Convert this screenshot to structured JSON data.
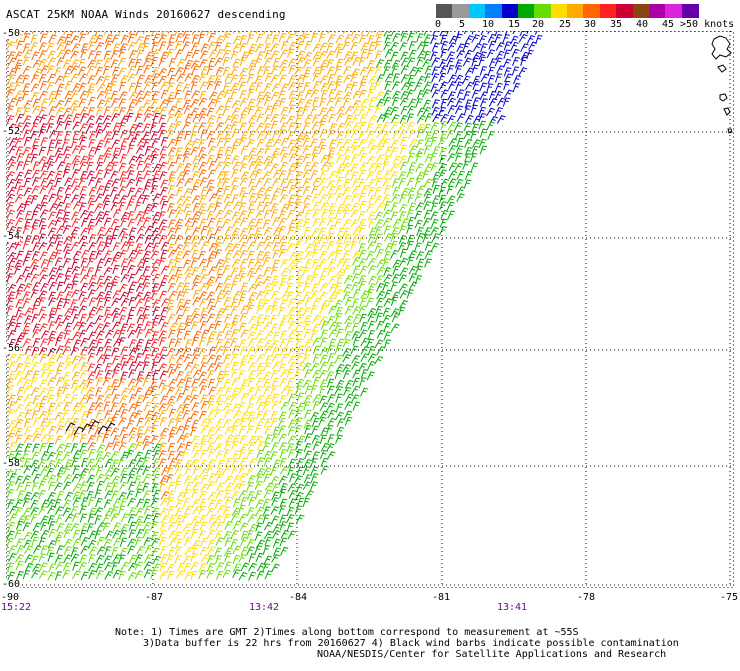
{
  "title": "ASCAT 25KM NOAA Winds 20160627 descending",
  "legend": {
    "colors": [
      "#555555",
      "#999999",
      "#00c8ff",
      "#0080ff",
      "#0000cc",
      "#00aa00",
      "#66dd00",
      "#ffdd00",
      "#ffaa00",
      "#ff6600",
      "#ff2222",
      "#cc0033",
      "#8b4513",
      "#aa00aa",
      "#dd22dd",
      "#6600aa"
    ],
    "ticks": [
      "0",
      "5",
      "10",
      "15",
      "20",
      "25",
      "30",
      "35",
      "40",
      "45",
      ">50 knots"
    ]
  },
  "lat_labels": [
    "-50",
    "-52",
    "-54",
    "-56",
    "-58",
    "-60"
  ],
  "lon_labels": [
    "-90",
    "-87",
    "-84",
    "-81",
    "-78",
    "-75"
  ],
  "time_labels": [
    "15:22",
    "13:42",
    "13:41"
  ],
  "notes": [
    "Note: 1) Times are GMT 2)Times along bottom correspond to measurement at ~55S",
    "3)Data buffer is 22 hrs from 20160627 4) Black wind barbs indicate possible contamination",
    "NOAA/NESDIS/Center for Satellite Applications and Research"
  ]
}
